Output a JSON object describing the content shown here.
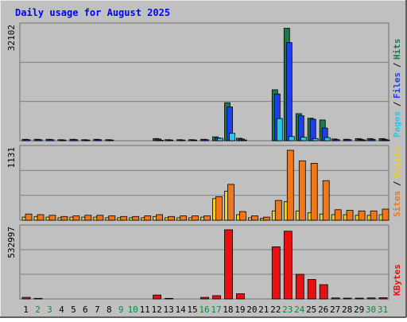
{
  "chart_data": [
    {
      "type": "bar",
      "title": "Daily usage for August 2025",
      "panel": "top",
      "max_label": "32102",
      "categories": [
        "1",
        "2",
        "3",
        "4",
        "5",
        "6",
        "7",
        "8",
        "9",
        "10",
        "11",
        "12",
        "13",
        "14",
        "15",
        "16",
        "17",
        "18",
        "19",
        "20",
        "21",
        "22",
        "23",
        "24",
        "25",
        "26",
        "27",
        "28",
        "29",
        "30",
        "31"
      ],
      "weekend_days": [
        "2",
        "3",
        "9",
        "10",
        "16",
        "17",
        "23",
        "24",
        "30",
        "31"
      ],
      "ylim": [
        0,
        32102
      ],
      "series": [
        {
          "name": "Hits",
          "color": "#1c7a4a",
          "values": [
            400,
            400,
            400,
            300,
            400,
            300,
            400,
            300,
            0,
            0,
            0,
            600,
            300,
            300,
            300,
            400,
            1100,
            10800,
            700,
            0,
            0,
            14500,
            32000,
            7700,
            6400,
            5900,
            500,
            400,
            600,
            600,
            600
          ]
        },
        {
          "name": "Files",
          "color": "#1e3ff0",
          "values": [
            300,
            300,
            300,
            200,
            300,
            200,
            300,
            200,
            0,
            0,
            0,
            500,
            200,
            200,
            200,
            300,
            800,
            9600,
            500,
            0,
            0,
            13300,
            27900,
            7100,
            6100,
            3600,
            300,
            300,
            400,
            400,
            400
          ]
        },
        {
          "name": "Pages",
          "color": "#29c8e8",
          "values": [
            100,
            100,
            100,
            50,
            100,
            50,
            100,
            50,
            0,
            0,
            0,
            150,
            50,
            50,
            50,
            100,
            700,
            2100,
            200,
            0,
            0,
            6300,
            1200,
            1000,
            600,
            900,
            100,
            100,
            200,
            100,
            200
          ]
        }
      ],
      "legend": [
        "Pages",
        "Files",
        "Hits"
      ],
      "legend_colors": [
        "#29c8e8",
        "#1e3ff0",
        "#1c7a4a"
      ]
    },
    {
      "type": "bar",
      "panel": "middle",
      "max_label": "1131",
      "ylim": [
        0,
        1131
      ],
      "series": [
        {
          "name": "Visits",
          "color": "#f0d020",
          "values": [
            50,
            60,
            50,
            40,
            50,
            50,
            50,
            40,
            40,
            40,
            40,
            60,
            40,
            40,
            40,
            50,
            350,
            470,
            90,
            40,
            30,
            150,
            300,
            150,
            120,
            100,
            90,
            90,
            80,
            80,
            90
          ]
        },
        {
          "name": "Sites",
          "color": "#f07818",
          "values": [
            100,
            90,
            80,
            60,
            70,
            80,
            80,
            70,
            60,
            60,
            70,
            90,
            60,
            70,
            70,
            70,
            380,
            580,
            140,
            70,
            50,
            320,
            1131,
            960,
            920,
            640,
            170,
            160,
            150,
            150,
            180
          ]
        }
      ],
      "legend": [
        "Sites",
        "Visits"
      ],
      "legend_colors": [
        "#f07818",
        "#f0d020"
      ]
    },
    {
      "type": "bar",
      "panel": "bottom",
      "max_label": "532997",
      "ylim": [
        0,
        532997
      ],
      "series": [
        {
          "name": "KBytes",
          "color": "#e81010",
          "values": [
            12000,
            4000,
            3000,
            2000,
            3000,
            2000,
            3000,
            2000,
            1000,
            1000,
            1000,
            30000,
            4000,
            3000,
            3000,
            12000,
            25000,
            532997,
            40000,
            3000,
            2000,
            402000,
            522000,
            190000,
            150000,
            110000,
            8000,
            6000,
            6000,
            8000,
            10000
          ]
        }
      ],
      "legend": [
        "KBytes"
      ],
      "legend_colors": [
        "#e81010"
      ]
    }
  ]
}
